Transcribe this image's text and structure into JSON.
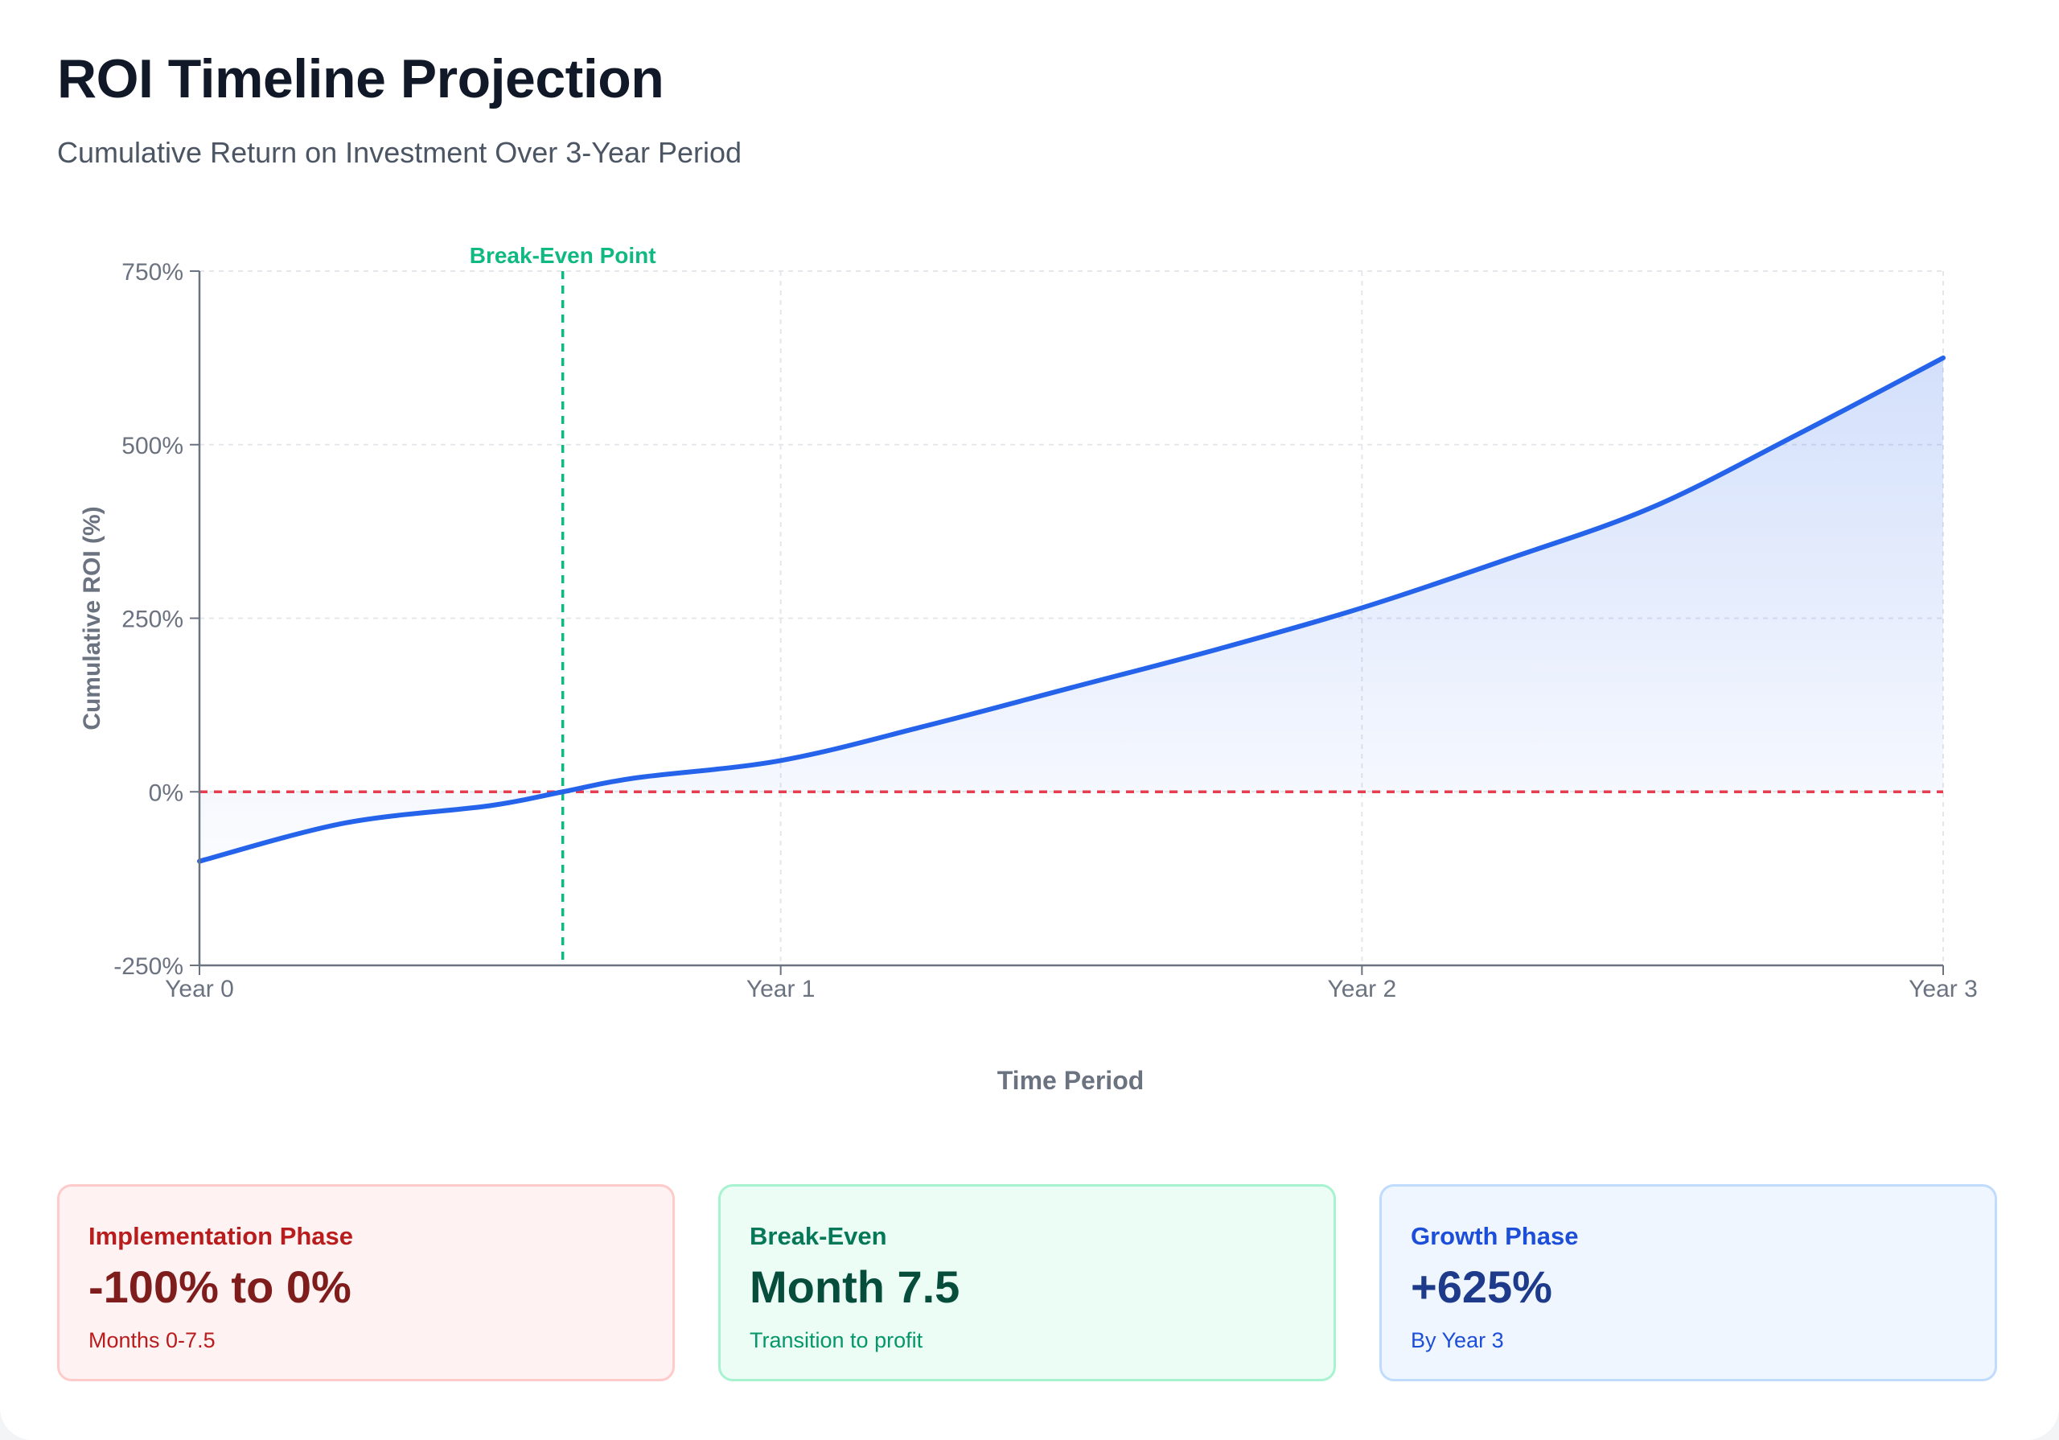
{
  "header": {
    "title": "ROI Timeline Projection",
    "subtitle": "Cumulative Return on Investment Over 3-Year Period"
  },
  "chart_data": {
    "type": "area",
    "xlabel": "Time Period",
    "ylabel": "Cumulative ROI (%)",
    "xlim": [
      0,
      3
    ],
    "ylim": [
      -250,
      750
    ],
    "x_ticks": [
      {
        "value": 0,
        "label": "Year 0"
      },
      {
        "value": 1,
        "label": "Year 1"
      },
      {
        "value": 2,
        "label": "Year 2"
      },
      {
        "value": 3,
        "label": "Year 3"
      }
    ],
    "y_ticks": [
      {
        "value": 750,
        "label": "750%"
      },
      {
        "value": 500,
        "label": "500%"
      },
      {
        "value": 250,
        "label": "250%"
      },
      {
        "value": 0,
        "label": "0%"
      },
      {
        "value": -250,
        "label": "-250%"
      }
    ],
    "grid": true,
    "series": [
      {
        "x": [
          0,
          0.25,
          0.5,
          0.625,
          0.75,
          1,
          1.25,
          1.5,
          1.75,
          2,
          2.25,
          2.5,
          2.75,
          3
        ],
        "values": [
          -100,
          -45,
          -20,
          0,
          20,
          45,
          95,
          150,
          205,
          265,
          335,
          410,
          515,
          625
        ]
      }
    ],
    "reference_lines": [
      {
        "axis": "y",
        "value": 0,
        "style": "dashed"
      },
      {
        "axis": "x",
        "value": 0.625,
        "style": "dashed",
        "label": "Break-Even Point"
      }
    ],
    "colors": {
      "line": "#2563eb",
      "area_top": "#2563eb",
      "zero_line": "#e53e50",
      "break_even": "#10b981",
      "axis": "#6b7280",
      "grid": "#e5e7eb",
      "tick_text": "#6b7280",
      "axis_title": "#6b7280"
    }
  },
  "stats": [
    {
      "label": "Implementation Phase",
      "value": "-100% to 0%",
      "note": "Months 0-7.5"
    },
    {
      "label": "Break-Even",
      "value": "Month 7.5",
      "note": "Transition to profit"
    },
    {
      "label": "Growth Phase",
      "value": "+625%",
      "note": "By Year 3"
    }
  ]
}
